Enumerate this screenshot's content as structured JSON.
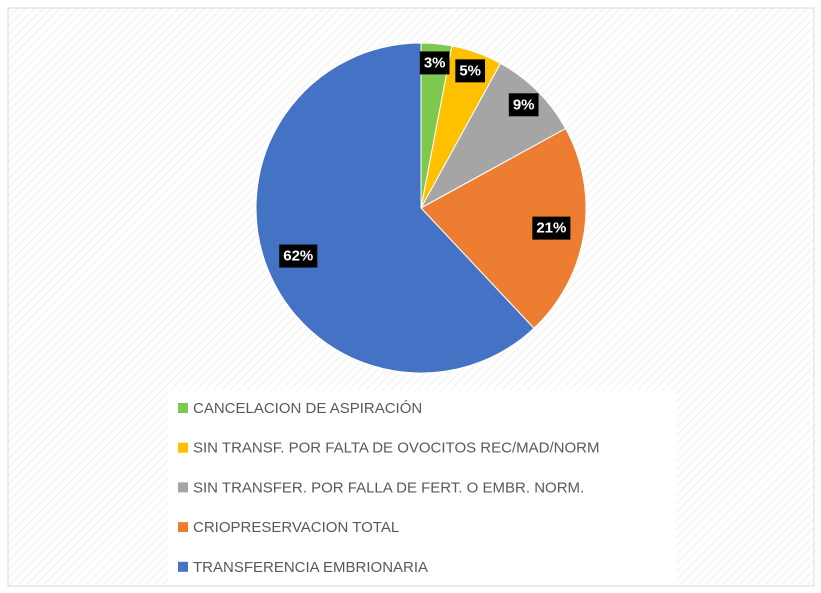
{
  "chart_data": {
    "type": "pie",
    "categories": [
      "CANCELACION DE ASPIRACIÓN",
      "SIN TRANSF. POR FALTA DE OVOCITOS REC/MAD/NORM",
      "SIN TRANSFER. POR FALLA DE FERT. O EMBR. NORM.",
      "CRIOPRESERVACION TOTAL",
      "TRANSFERENCIA EMBRIONARIA"
    ],
    "values": [
      3,
      5,
      9,
      21,
      62
    ],
    "value_labels": [
      "3%",
      "5%",
      "9%",
      "21%",
      "62%"
    ],
    "colors": [
      "#7ec850",
      "#ffc000",
      "#a5a5a5",
      "#ed7d31",
      "#4472c4"
    ],
    "legend": "bottom"
  }
}
